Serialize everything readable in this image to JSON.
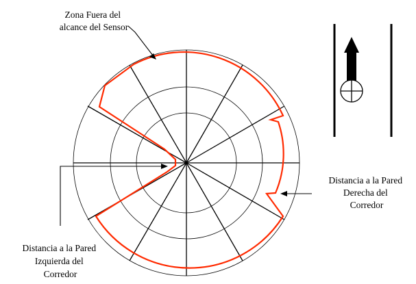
{
  "labels": {
    "out_of_range": [
      "Zona Fuera del",
      "alcance del Sensor"
    ],
    "right_wall": [
      "Distancia a la Pared",
      "Derecha del",
      "Corredor"
    ],
    "left_wall": [
      "Distancia a la Pared",
      "Izquierda del",
      "Corredor"
    ]
  },
  "colors": {
    "profile": "#ff2a00",
    "lines": "#000000",
    "background": "#ffffff"
  },
  "icons": {
    "robot": "robot-crosshair-icon",
    "direction": "up-arrow-icon"
  }
}
